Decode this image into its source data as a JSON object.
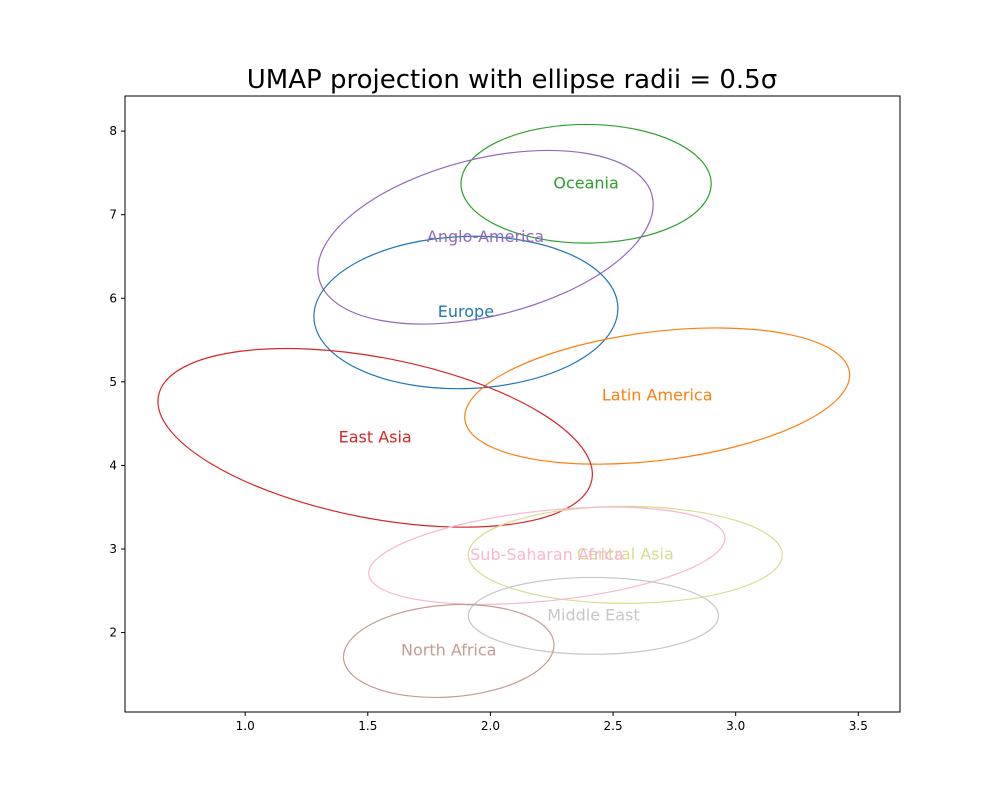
{
  "chart_data": {
    "type": "scatter",
    "title": "UMAP projection with ellipse radii = 0.5σ",
    "xlabel": "",
    "ylabel": "",
    "xlim": [
      0.51,
      3.67
    ],
    "ylim": [
      1.05,
      8.42
    ],
    "xticks": [
      1.0,
      1.5,
      2.0,
      2.5,
      3.0,
      3.5
    ],
    "yticks": [
      2,
      3,
      4,
      5,
      6,
      7,
      8
    ],
    "xtick_labels": [
      "1.0",
      "1.5",
      "2.0",
      "2.5",
      "3.0",
      "3.5"
    ],
    "ytick_labels": [
      "2",
      "3",
      "4",
      "5",
      "6",
      "7",
      "8"
    ],
    "grid": false,
    "legend": "none",
    "series": [
      {
        "name": "Oceania",
        "color": "#2ca02c",
        "center": [
          2.39,
          7.37
        ],
        "rx": 0.51,
        "ry": 0.71,
        "angle": 0
      },
      {
        "name": "Anglo-America",
        "color": "#9467bd",
        "center": [
          1.98,
          6.73
        ],
        "rx": 0.7,
        "ry": 0.94,
        "angle": -14
      },
      {
        "name": "Europe",
        "color": "#1f77b4",
        "center": [
          1.9,
          5.83
        ],
        "rx": 0.62,
        "ry": 0.91,
        "angle": -2
      },
      {
        "name": "Latin America",
        "color": "#ff7f0e",
        "center": [
          2.68,
          4.83
        ],
        "rx": 0.79,
        "ry": 0.77,
        "angle": -7
      },
      {
        "name": "East Asia",
        "color": "#d62728",
        "center": [
          1.53,
          4.33
        ],
        "rx": 0.9,
        "ry": 0.96,
        "angle": 11
      },
      {
        "name": "Central Asia",
        "color": "#dbdb8d",
        "center": [
          2.55,
          2.93
        ],
        "rx": 0.64,
        "ry": 0.58,
        "angle": 0
      },
      {
        "name": "Sub-Saharan Africa",
        "color": "#f7b6d2",
        "center": [
          2.23,
          2.92
        ],
        "rx": 0.73,
        "ry": 0.54,
        "angle": -6
      },
      {
        "name": "Middle East",
        "color": "#c7c7c7",
        "center": [
          2.42,
          2.2
        ],
        "rx": 0.51,
        "ry": 0.46,
        "angle": 0
      },
      {
        "name": "North Africa",
        "color": "#c49c94",
        "center": [
          1.83,
          1.78
        ],
        "rx": 0.43,
        "ry": 0.55,
        "angle": -4
      }
    ]
  }
}
